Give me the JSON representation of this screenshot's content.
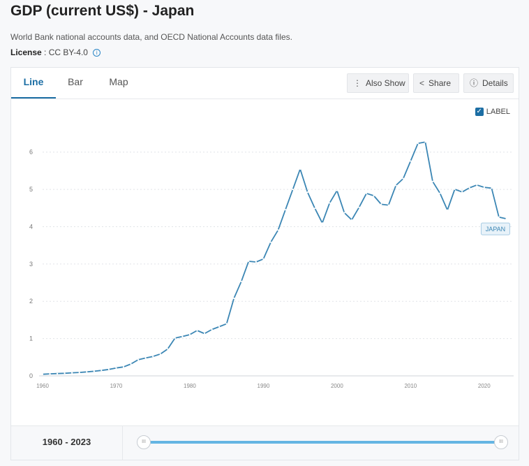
{
  "header": {
    "title": "GDP (current US$) - Japan",
    "source": "World Bank national accounts data, and OECD National Accounts data files.",
    "license_label": "License",
    "license_value": ": CC BY-4.0"
  },
  "tabs": [
    {
      "label": "Line",
      "active": true
    },
    {
      "label": "Bar",
      "active": false
    },
    {
      "label": "Map",
      "active": false
    }
  ],
  "toolbar": {
    "also_show": "Also Show",
    "share": "Share",
    "details": "Details"
  },
  "label_toggle": {
    "text": "LABEL",
    "checked": true
  },
  "footer": {
    "range_start": "1960",
    "range_sep": "-",
    "range_end": "2023",
    "handle_icon": "III"
  },
  "colors": {
    "line": "#3b86b4",
    "accent": "#1c6ea4",
    "slider": "#64b5e3"
  },
  "chart_data": {
    "type": "line",
    "title": "",
    "xlabel": "",
    "ylabel": "",
    "xlim": [
      1960,
      2024
    ],
    "ylim": [
      0,
      6.5
    ],
    "yticks": [
      0,
      1,
      2,
      3,
      4,
      5,
      6
    ],
    "xticks": [
      1960,
      1970,
      1980,
      1990,
      2000,
      2010,
      2020
    ],
    "grid": true,
    "series": [
      {
        "name": "",
        "end_label": "JAPAN",
        "x": [
          1960,
          1961,
          1962,
          1963,
          1964,
          1965,
          1966,
          1967,
          1968,
          1969,
          1970,
          1971,
          1972,
          1973,
          1974,
          1975,
          1976,
          1977,
          1978,
          1979,
          1980,
          1981,
          1982,
          1983,
          1984,
          1985,
          1986,
          1987,
          1988,
          1989,
          1990,
          1991,
          1992,
          1993,
          1994,
          1995,
          1996,
          1997,
          1998,
          1999,
          2000,
          2001,
          2002,
          2003,
          2004,
          2005,
          2006,
          2007,
          2008,
          2009,
          2010,
          2011,
          2012,
          2013,
          2014,
          2015,
          2016,
          2017,
          2018,
          2019,
          2020,
          2021,
          2022,
          2023
        ],
        "y": [
          0.044,
          0.054,
          0.061,
          0.069,
          0.082,
          0.091,
          0.106,
          0.124,
          0.147,
          0.173,
          0.212,
          0.24,
          0.318,
          0.432,
          0.48,
          0.521,
          0.586,
          0.721,
          1.014,
          1.056,
          1.105,
          1.218,
          1.134,
          1.243,
          1.318,
          1.398,
          2.079,
          2.533,
          3.072,
          3.054,
          3.133,
          3.584,
          3.909,
          4.455,
          4.999,
          5.545,
          4.924,
          4.492,
          4.098,
          4.635,
          4.968,
          4.374,
          4.182,
          4.519,
          4.893,
          4.831,
          4.601,
          4.579,
          5.106,
          5.289,
          5.759,
          6.234,
          6.272,
          5.212,
          4.897,
          4.445,
          5.004,
          4.931,
          5.041,
          5.118,
          5.055,
          5.034,
          4.256,
          4.213
        ]
      }
    ]
  }
}
